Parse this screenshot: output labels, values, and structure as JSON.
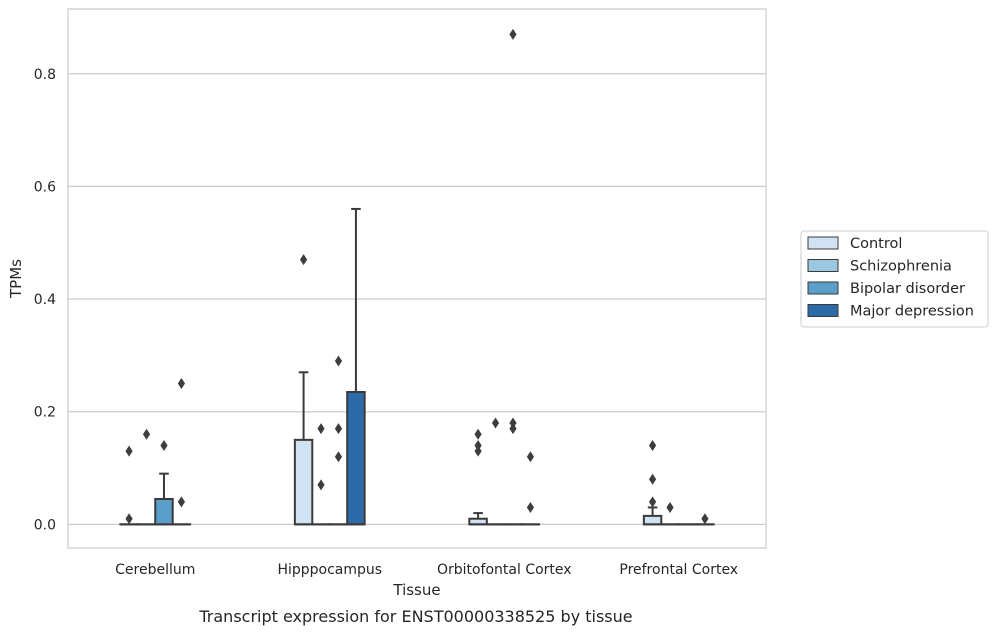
{
  "caption": "Transcript expression for ENST00000338525 by tissue",
  "chart_data": {
    "type": "box",
    "xlabel": "Tissue",
    "ylabel": "TPMs",
    "ylim": [
      -0.042,
      0.915
    ],
    "yticks": [
      "0.0",
      "0.2",
      "0.4",
      "0.6",
      "0.8"
    ],
    "ytick_values": [
      0.0,
      0.2,
      0.4,
      0.6,
      0.8
    ],
    "grid": "horizontal",
    "legend_position": "right",
    "categories": [
      "Cerebellum",
      "Hipppocampus",
      "Orbitofontal Cortex",
      "Prefrontal Cortex"
    ],
    "series": [
      {
        "name": "Control",
        "color": "#d1e2f2",
        "boxes": [
          {
            "q1": 0.0,
            "median": 0.0,
            "q3": 0.0,
            "whisker_low": 0.0,
            "whisker_high": 0.0,
            "outliers": [
              0.13,
              0.01
            ]
          },
          {
            "q1": 0.0,
            "median": 0.0,
            "q3": 0.15,
            "whisker_low": 0.0,
            "whisker_high": 0.27,
            "outliers": [
              0.47
            ]
          },
          {
            "q1": 0.0,
            "median": 0.0,
            "q3": 0.01,
            "whisker_low": 0.0,
            "whisker_high": 0.02,
            "outliers": [
              0.16,
              0.14,
              0.13
            ]
          },
          {
            "q1": 0.0,
            "median": 0.0,
            "q3": 0.015,
            "whisker_low": 0.0,
            "whisker_high": 0.03,
            "outliers": [
              0.14,
              0.08,
              0.04
            ]
          }
        ]
      },
      {
        "name": "Schizophrenia",
        "color": "#9ac8e0",
        "boxes": [
          {
            "q1": 0.0,
            "median": 0.0,
            "q3": 0.0,
            "whisker_low": 0.0,
            "whisker_high": 0.0,
            "outliers": [
              0.16
            ]
          },
          {
            "q1": 0.0,
            "median": 0.0,
            "q3": 0.0,
            "whisker_low": 0.0,
            "whisker_high": 0.0,
            "outliers": [
              0.17,
              0.07
            ]
          },
          {
            "q1": 0.0,
            "median": 0.0,
            "q3": 0.0,
            "whisker_low": 0.0,
            "whisker_high": 0.0,
            "outliers": [
              0.18
            ]
          },
          {
            "q1": 0.0,
            "median": 0.0,
            "q3": 0.0,
            "whisker_low": 0.0,
            "whisker_high": 0.0,
            "outliers": [
              0.03
            ]
          }
        ]
      },
      {
        "name": "Bipolar disorder",
        "color": "#5a9ec9",
        "boxes": [
          {
            "q1": 0.0,
            "median": 0.0,
            "q3": 0.045,
            "whisker_low": 0.0,
            "whisker_high": 0.09,
            "outliers": [
              0.14
            ]
          },
          {
            "q1": 0.0,
            "median": 0.0,
            "q3": 0.0,
            "whisker_low": 0.0,
            "whisker_high": 0.0,
            "outliers": [
              0.29,
              0.17,
              0.12
            ]
          },
          {
            "q1": 0.0,
            "median": 0.0,
            "q3": 0.0,
            "whisker_low": 0.0,
            "whisker_high": 0.0,
            "outliers": [
              0.87,
              0.18,
              0.17
            ]
          },
          {
            "q1": 0.0,
            "median": 0.0,
            "q3": 0.0,
            "whisker_low": 0.0,
            "whisker_high": 0.0,
            "outliers": []
          }
        ]
      },
      {
        "name": "Major depression",
        "color": "#2d6ba8",
        "boxes": [
          {
            "q1": 0.0,
            "median": 0.0,
            "q3": 0.0,
            "whisker_low": 0.0,
            "whisker_high": 0.0,
            "outliers": [
              0.25,
              0.04
            ]
          },
          {
            "q1": 0.0,
            "median": 0.0,
            "q3": 0.235,
            "whisker_low": 0.0,
            "whisker_high": 0.56,
            "outliers": []
          },
          {
            "q1": 0.0,
            "median": 0.0,
            "q3": 0.0,
            "whisker_low": 0.0,
            "whisker_high": 0.0,
            "outliers": [
              0.12,
              0.03
            ]
          },
          {
            "q1": 0.0,
            "median": 0.0,
            "q3": 0.0,
            "whisker_low": 0.0,
            "whisker_high": 0.0,
            "outliers": [
              0.01
            ]
          }
        ]
      }
    ]
  }
}
